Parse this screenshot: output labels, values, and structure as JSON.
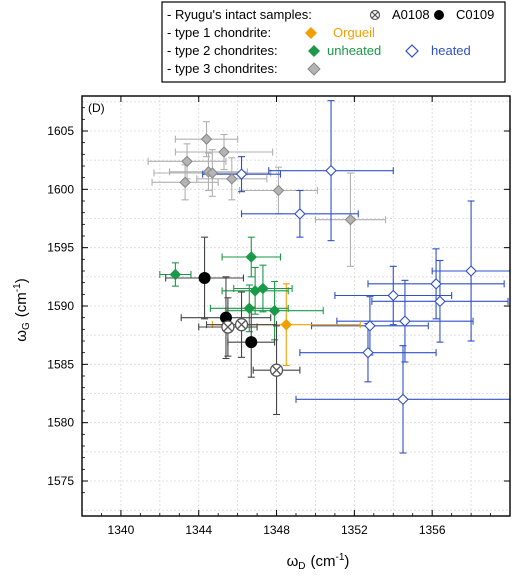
{
  "chart_data": {
    "type": "scatter",
    "panel_label": "(D)",
    "xlabel": "ω",
    "xlabel_sub": "D",
    "xlabel_unit_open": "(cm",
    "xlabel_unit_sup": "-1",
    "xlabel_unit_close": ")",
    "ylabel": "ω",
    "ylabel_sub": "G",
    "ylabel_unit_open": "(cm",
    "ylabel_unit_sup": "-1",
    "ylabel_unit_close": ")",
    "xlim": [
      1338,
      1360
    ],
    "ylim": [
      1572,
      1608
    ],
    "xticks": [
      1340,
      1344,
      1348,
      1352,
      1356
    ],
    "yticks": [
      1575,
      1580,
      1585,
      1590,
      1595,
      1600,
      1605
    ],
    "grid": true,
    "legend_position": "top",
    "legend": {
      "row1_label": "- Ryugu's intact samples:",
      "row1_a_name": "A0108",
      "row1_b_name": "C0109",
      "row2_label": "- type 1 chondrite:",
      "row2_name": "Orgueil",
      "row3_label": "- type 2 chondrites:",
      "row3_a_name": "unheated",
      "row3_b_name": "heated",
      "row4_label": "- type 3 chondrites:"
    },
    "colors": {
      "A0108": "#555555",
      "C0109": "#000000",
      "Orgueil": "#f0a000",
      "unheated": "#1a9a48",
      "heated": "#3050c8",
      "type3": "#8a8a8a",
      "type3_fill": "#b4b4b4"
    },
    "series": [
      {
        "name": "A0108",
        "marker": "circle-x",
        "points": [
          {
            "x": 1345.5,
            "y": 1588.2,
            "xerr": 1.5,
            "yerr": 2.5
          },
          {
            "x": 1346.2,
            "y": 1588.4,
            "xerr": 1.8,
            "yerr": 2.8
          },
          {
            "x": 1348.0,
            "y": 1584.5,
            "xerr": 1.2,
            "yerr": 3.8
          }
        ]
      },
      {
        "name": "C0109",
        "marker": "filled-circle",
        "points": [
          {
            "x": 1344.3,
            "y": 1592.4,
            "xerr": 2.0,
            "yerr": 3.5
          },
          {
            "x": 1345.4,
            "y": 1589.0,
            "xerr": 2.3,
            "yerr": 3.5
          },
          {
            "x": 1346.7,
            "y": 1586.9,
            "xerr": 1.2,
            "yerr": 3.0
          }
        ]
      },
      {
        "name": "Orgueil",
        "marker": "filled-diamond",
        "points": [
          {
            "x": 1348.5,
            "y": 1588.4,
            "xerr": 3.8,
            "yerr": 3.5
          }
        ]
      },
      {
        "name": "unheated",
        "marker": "filled-diamond",
        "points": [
          {
            "x": 1342.8,
            "y": 1592.7,
            "xerr": 0.8,
            "yerr": 1.0
          },
          {
            "x": 1346.7,
            "y": 1594.2,
            "xerr": 1.5,
            "yerr": 1.7
          },
          {
            "x": 1346.9,
            "y": 1591.3,
            "xerr": 1.7,
            "yerr": 2.0
          },
          {
            "x": 1347.3,
            "y": 1591.5,
            "xerr": 1.5,
            "yerr": 2.0
          },
          {
            "x": 1347.9,
            "y": 1589.6,
            "xerr": 2.5,
            "yerr": 2.5
          },
          {
            "x": 1346.6,
            "y": 1589.8,
            "xerr": 2.0,
            "yerr": 2.0
          }
        ]
      },
      {
        "name": "heated",
        "marker": "open-diamond",
        "points": [
          {
            "x": 1350.8,
            "y": 1601.6,
            "xerr": 3.2,
            "yerr": 6.0
          },
          {
            "x": 1346.2,
            "y": 1601.3,
            "xerr": 2.0,
            "yerr": 1.5
          },
          {
            "x": 1349.2,
            "y": 1597.9,
            "xerr": 3.0,
            "yerr": 2.0
          },
          {
            "x": 1358.0,
            "y": 1593.0,
            "xerr": 2.0,
            "yerr": 6.0
          },
          {
            "x": 1356.2,
            "y": 1591.9,
            "xerr": 3.5,
            "yerr": 3.0
          },
          {
            "x": 1354.0,
            "y": 1590.9,
            "xerr": 3.0,
            "yerr": 2.5
          },
          {
            "x": 1356.4,
            "y": 1590.4,
            "xerr": 3.5,
            "yerr": 3.5
          },
          {
            "x": 1354.6,
            "y": 1588.7,
            "xerr": 3.5,
            "yerr": 3.5
          },
          {
            "x": 1352.8,
            "y": 1588.3,
            "xerr": 3.0,
            "yerr": 2.5
          },
          {
            "x": 1352.7,
            "y": 1586.0,
            "xerr": 3.5,
            "yerr": 2.5
          },
          {
            "x": 1354.5,
            "y": 1582.0,
            "xerr": 5.5,
            "yerr": 4.6
          }
        ]
      },
      {
        "name": "type3",
        "marker": "filled-diamond",
        "points": [
          {
            "x": 1344.4,
            "y": 1604.3,
            "xerr": 1.6,
            "yerr": 1.5
          },
          {
            "x": 1343.4,
            "y": 1602.4,
            "xerr": 2.0,
            "yerr": 1.5
          },
          {
            "x": 1345.3,
            "y": 1603.2,
            "xerr": 2.5,
            "yerr": 1.5
          },
          {
            "x": 1344.5,
            "y": 1601.5,
            "xerr": 2.0,
            "yerr": 1.6
          },
          {
            "x": 1344.7,
            "y": 1601.4,
            "xerr": 3.0,
            "yerr": 2.0
          },
          {
            "x": 1343.3,
            "y": 1600.6,
            "xerr": 1.7,
            "yerr": 1.5
          },
          {
            "x": 1345.7,
            "y": 1600.9,
            "xerr": 1.8,
            "yerr": 1.8
          },
          {
            "x": 1348.1,
            "y": 1599.9,
            "xerr": 2.0,
            "yerr": 2.0
          },
          {
            "x": 1351.8,
            "y": 1597.4,
            "xerr": 1.8,
            "yerr": 4.0
          }
        ]
      }
    ]
  }
}
